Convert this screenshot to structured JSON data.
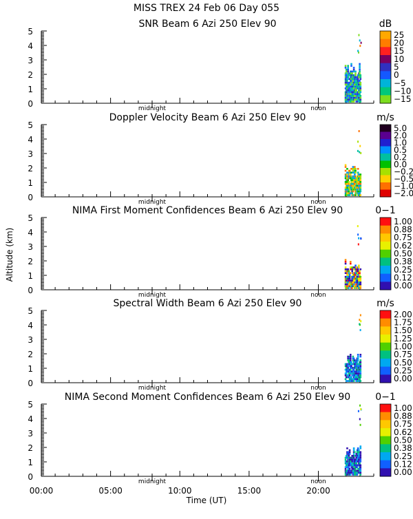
{
  "figure": {
    "title_line1": "MISS TREX  24 Feb 06 Day 055",
    "ylabel": "Altitude (km)",
    "xlabel": "Time (UT)",
    "x_ticks": [
      "00:00",
      "05:00",
      "10:00",
      "15:00",
      "20:00"
    ],
    "markers": [
      "midnight",
      "noon"
    ]
  },
  "chart_data": [
    {
      "type": "heatmap",
      "title": "SNR Beam 6 Azi 250 Elev 90",
      "units": "dB",
      "x_range_hours": [
        0,
        24
      ],
      "ylim": [
        0,
        5
      ],
      "y_ticks": [
        "0",
        "1",
        "2",
        "3",
        "4",
        "5"
      ],
      "colorbar_labels": [
        "25",
        "20",
        "15",
        "10",
        "5",
        "0",
        "−5",
        "−10",
        "−15"
      ],
      "colorbar_colors": [
        "#ffa800",
        "#ff7c00",
        "#ff2020",
        "#7a0060",
        "#3030c0",
        "#1458ff",
        "#00b4d8",
        "#00c87a",
        "#7ddd1e"
      ],
      "data_time_range_hours": [
        21.9,
        23.0
      ],
      "data_altitude_max_km": 3.0
    },
    {
      "type": "heatmap",
      "title": "Doppler Velocity Beam 6 Azi 250 Elev 90",
      "units": "m/s",
      "x_range_hours": [
        0,
        24
      ],
      "ylim": [
        0,
        5
      ],
      "y_ticks": [
        "0",
        "1",
        "2",
        "3",
        "4",
        "5"
      ],
      "colorbar_labels": [
        "5.0",
        "2.0",
        "1.0",
        "0.5",
        "0.2",
        "0.0",
        "−0.2",
        "−0.5",
        "−1.0",
        "−2.0"
      ],
      "colorbar_colors": [
        "#200020",
        "#5a0090",
        "#2020d0",
        "#0090ff",
        "#00c0a0",
        "#00c000",
        "#a8e000",
        "#ffd000",
        "#ff7000",
        "#e00000"
      ],
      "data_time_range_hours": [
        21.9,
        23.0
      ],
      "data_altitude_max_km": 2.2
    },
    {
      "type": "heatmap",
      "title": "NIMA First Moment Confidences Beam 6 Azi 250 Elev 90",
      "units": "0−1",
      "x_range_hours": [
        0,
        24
      ],
      "ylim": [
        0,
        5
      ],
      "y_ticks": [
        "0",
        "1",
        "2",
        "3",
        "4",
        "5"
      ],
      "colorbar_labels": [
        "1.00",
        "0.88",
        "0.75",
        "0.62",
        "0.50",
        "0.38",
        "0.25",
        "0.12",
        "0.00"
      ],
      "colorbar_colors": [
        "#ff1010",
        "#ff8c00",
        "#ffc800",
        "#e8f000",
        "#50d000",
        "#00c080",
        "#00a8f0",
        "#1060ff",
        "#3010b0"
      ],
      "data_time_range_hours": [
        21.9,
        23.0
      ],
      "data_altitude_max_km": 2.1
    },
    {
      "type": "heatmap",
      "title": "Spectral Width Beam 6 Azi 250 Elev 90",
      "units": "m/s",
      "x_range_hours": [
        0,
        24
      ],
      "ylim": [
        0,
        5
      ],
      "y_ticks": [
        "0",
        "1",
        "2",
        "3",
        "4",
        "5"
      ],
      "colorbar_labels": [
        "2.00",
        "1.75",
        "1.50",
        "1.25",
        "1.00",
        "0.75",
        "0.50",
        "0.25",
        "0.00"
      ],
      "colorbar_colors": [
        "#ff1010",
        "#ff8c00",
        "#ffc800",
        "#e8f000",
        "#50d000",
        "#00c080",
        "#00a8f0",
        "#1060ff",
        "#3010b0"
      ],
      "data_time_range_hours": [
        21.9,
        23.0
      ],
      "data_altitude_max_km": 2.1
    },
    {
      "type": "heatmap",
      "title": "NIMA Second Moment Confidences Beam 6 Azi 250 Elev 90",
      "units": "0−1",
      "x_range_hours": [
        0,
        24
      ],
      "ylim": [
        0,
        5
      ],
      "y_ticks": [
        "0",
        "1",
        "2",
        "3",
        "4",
        "5"
      ],
      "colorbar_labels": [
        "1.00",
        "0.88",
        "0.75",
        "0.62",
        "0.50",
        "0.38",
        "0.25",
        "0.12",
        "0.00"
      ],
      "colorbar_colors": [
        "#ff1010",
        "#ff8c00",
        "#ffc800",
        "#e8f000",
        "#50d000",
        "#00c080",
        "#00a8f0",
        "#1060ff",
        "#3010b0"
      ],
      "data_time_range_hours": [
        21.9,
        23.0
      ],
      "data_altitude_max_km": 2.1
    }
  ]
}
